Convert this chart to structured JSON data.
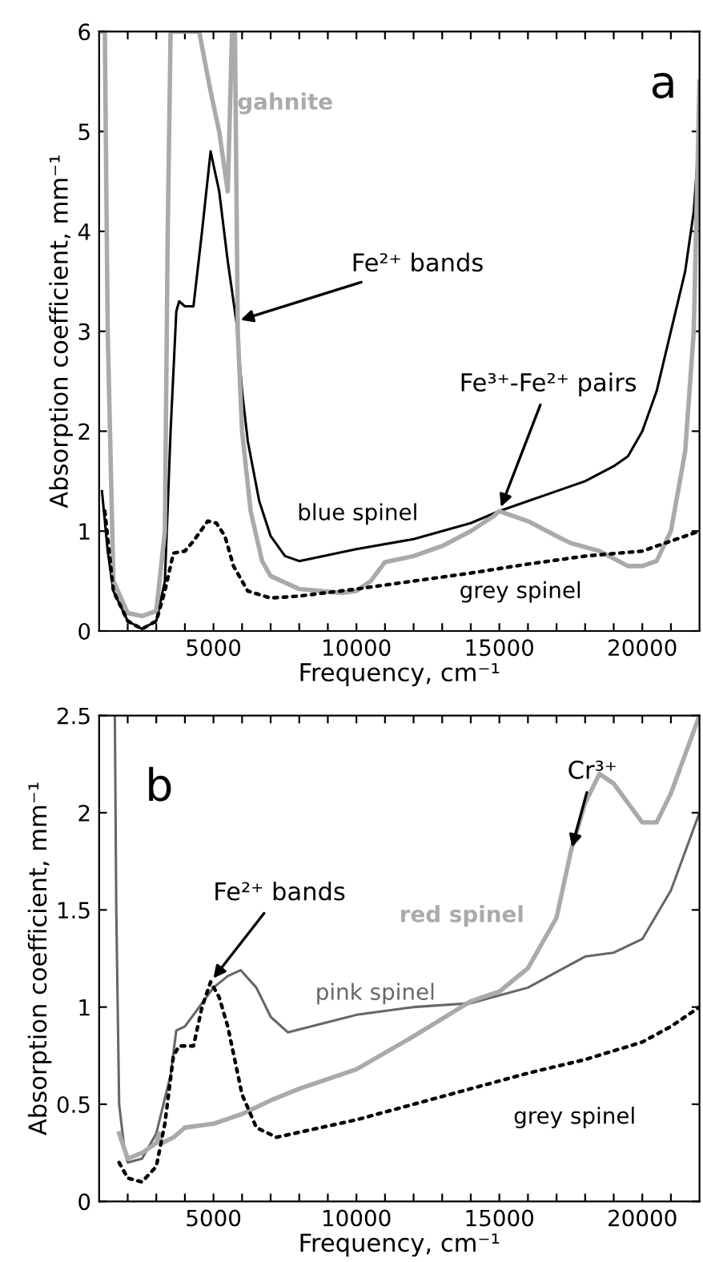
{
  "chart_data": [
    {
      "type": "line",
      "xlabel": "Frequency, cm⁻¹",
      "ylabel": "Absorption coefficient, mm⁻¹",
      "xlim": [
        1000,
        22000
      ],
      "ylim": [
        0,
        6
      ],
      "xticks": [
        {
          "value": 2000,
          "label": null
        },
        {
          "value": 3000,
          "label": null
        },
        {
          "value": 4000,
          "label": null
        },
        5000,
        {
          "value": 6000,
          "label": null
        },
        {
          "value": 7000,
          "label": null
        },
        {
          "value": 8000,
          "label": null
        },
        {
          "value": 9000,
          "label": null
        },
        10000,
        {
          "value": 11000,
          "label": null
        },
        {
          "value": 12000,
          "label": null
        },
        {
          "value": 13000,
          "label": null
        },
        {
          "value": 14000,
          "label": null
        },
        15000,
        {
          "value": 16000,
          "label": null
        },
        {
          "value": 17000,
          "label": null
        },
        {
          "value": 18000,
          "label": null
        },
        {
          "value": 19000,
          "label": null
        },
        20000,
        {
          "value": 21000,
          "label": null
        }
      ],
      "yticks": [
        0,
        1,
        2,
        3,
        4,
        5,
        6
      ],
      "grid": false,
      "legend": false,
      "series": [
        {
          "name": "blue spinel",
          "color": "#000000",
          "line_style": "solid",
          "x": [
            1100,
            1300,
            1500,
            2000,
            2500,
            3000,
            3300,
            3500,
            3700,
            3800,
            4000,
            4300,
            4600,
            4900,
            5200,
            5500,
            5800,
            6000,
            6200,
            6600,
            7000,
            7500,
            8000,
            10000,
            12000,
            14000,
            15000,
            16000,
            17000,
            18000,
            19000,
            19500,
            20000,
            20500,
            21000,
            21500,
            21800,
            22000
          ],
          "values": [
            1.4,
            0.8,
            0.4,
            0.1,
            0.02,
            0.1,
            0.5,
            2.0,
            3.2,
            3.3,
            3.25,
            3.25,
            4.0,
            4.8,
            4.4,
            3.7,
            3.1,
            2.4,
            1.9,
            1.3,
            0.95,
            0.75,
            0.7,
            0.82,
            0.92,
            1.08,
            1.2,
            1.3,
            1.4,
            1.5,
            1.65,
            1.75,
            2.0,
            2.4,
            3.0,
            3.6,
            4.2,
            5.0
          ]
        },
        {
          "name": "gahnite",
          "color": "#aaaaaa",
          "line_style": "solid",
          "x": [
            1000,
            1200,
            1300,
            1500,
            2000,
            2500,
            3000,
            3300,
            3400,
            3500,
            4500,
            4900,
            5200,
            5500,
            5650,
            5750,
            5850,
            6000,
            6300,
            6700,
            7000,
            8000,
            9500,
            10000,
            10500,
            11000,
            12000,
            13000,
            14000,
            14800,
            15000,
            16000,
            17000,
            17500,
            18500,
            19500,
            20000,
            20500,
            21000,
            21500,
            21800,
            22000
          ],
          "values": [
            6,
            6,
            3,
            0.5,
            0.18,
            0.15,
            0.2,
            1.0,
            4.0,
            6,
            6,
            5.4,
            5.0,
            4.4,
            6,
            6,
            3.0,
            2.0,
            1.2,
            0.7,
            0.55,
            0.42,
            0.38,
            0.4,
            0.5,
            0.69,
            0.75,
            0.85,
            1.0,
            1.15,
            1.2,
            1.1,
            0.95,
            0.88,
            0.8,
            0.65,
            0.65,
            0.7,
            1.0,
            1.8,
            3.0,
            5.5
          ]
        },
        {
          "name": "grey spinel",
          "color": "#000000",
          "line_style": "dotted",
          "x": [
            1200,
            1500,
            2000,
            2500,
            3000,
            3300,
            3600,
            4000,
            4300,
            4800,
            5100,
            5400,
            5700,
            6200,
            7000,
            8000,
            10000,
            12000,
            14000,
            16000,
            18000,
            20000,
            21000,
            22000
          ],
          "values": [
            1.2,
            0.4,
            0.1,
            0.02,
            0.1,
            0.4,
            0.78,
            0.8,
            0.9,
            1.1,
            1.08,
            0.95,
            0.65,
            0.4,
            0.33,
            0.35,
            0.42,
            0.5,
            0.58,
            0.67,
            0.75,
            0.8,
            0.9,
            1.0
          ]
        }
      ],
      "annotations": [
        "a",
        {
          "text": "Fe²⁺ bands",
          "x": 5800,
          "y": 3.1
        },
        {
          "text": "Fe³⁺-Fe²⁺ pairs",
          "x": 15000,
          "y": 1.2
        }
      ]
    },
    {
      "type": "line",
      "xlabel": "Frequency, cm⁻¹",
      "ylabel": "Absorption coefficient, mm⁻¹",
      "xlim": [
        1000,
        22000
      ],
      "ylim": [
        0,
        2.5
      ],
      "xticks": [
        {
          "value": 2000,
          "label": null
        },
        {
          "value": 3000,
          "label": null
        },
        {
          "value": 4000,
          "label": null
        },
        5000,
        {
          "value": 6000,
          "label": null
        },
        {
          "value": 7000,
          "label": null
        },
        {
          "value": 8000,
          "label": null
        },
        {
          "value": 9000,
          "label": null
        },
        10000,
        {
          "value": 11000,
          "label": null
        },
        {
          "value": 12000,
          "label": null
        },
        {
          "value": 13000,
          "label": null
        },
        {
          "value": 14000,
          "label": null
        },
        15000,
        {
          "value": 16000,
          "label": null
        },
        {
          "value": 17000,
          "label": null
        },
        {
          "value": 18000,
          "label": null
        },
        {
          "value": 19000,
          "label": null
        },
        20000,
        {
          "value": 21000,
          "label": null
        }
      ],
      "yticks": [
        0,
        0.5,
        1,
        1.5,
        2,
        2.5
      ],
      "grid": false,
      "legend": false,
      "series": [
        {
          "name": "pink spinel",
          "color": "#666666",
          "line_style": "solid",
          "x": [
            1550,
            1600,
            1700,
            1900,
            2000,
            2500,
            3000,
            3500,
            3700,
            4000,
            4500,
            5000,
            5500,
            5950,
            6500,
            7000,
            7600,
            10000,
            12000,
            14000,
            16000,
            17000,
            18000,
            19000,
            20000,
            21000,
            21500,
            22000
          ],
          "values": [
            2.5,
            1.5,
            0.5,
            0.25,
            0.2,
            0.22,
            0.35,
            0.65,
            0.88,
            0.9,
            1.0,
            1.1,
            1.16,
            1.19,
            1.1,
            0.95,
            0.87,
            0.96,
            1.0,
            1.02,
            1.1,
            1.18,
            1.26,
            1.28,
            1.35,
            1.6,
            1.8,
            2.0
          ]
        },
        {
          "name": "red spinel",
          "color": "#aaaaaa",
          "line_style": "solid",
          "x": [
            1700,
            2000,
            2500,
            3000,
            3100,
            3200,
            3600,
            4000,
            5000,
            6000,
            7000,
            8000,
            10000,
            12000,
            14000,
            15000,
            16000,
            17000,
            17500,
            18000,
            18500,
            19000,
            19500,
            20000,
            20500,
            21000,
            21500,
            22000
          ],
          "values": [
            0.35,
            0.22,
            0.25,
            0.3,
            0.35,
            0.3,
            0.33,
            0.38,
            0.4,
            0.45,
            0.52,
            0.58,
            0.68,
            0.85,
            1.03,
            1.08,
            1.2,
            1.46,
            1.8,
            2.05,
            2.2,
            2.15,
            2.05,
            1.95,
            1.95,
            2.1,
            2.3,
            2.5
          ]
        },
        {
          "name": "grey spinel",
          "color": "#000000",
          "line_style": "dotted",
          "x": [
            1700,
            2000,
            2500,
            3000,
            3300,
            3600,
            3800,
            4300,
            4600,
            4900,
            5200,
            5500,
            6000,
            6500,
            7200,
            10000,
            12000,
            14000,
            16000,
            18000,
            20000,
            21000,
            22000
          ],
          "values": [
            0.2,
            0.12,
            0.1,
            0.18,
            0.4,
            0.75,
            0.8,
            0.8,
            1.0,
            1.13,
            1.05,
            0.9,
            0.55,
            0.38,
            0.33,
            0.42,
            0.5,
            0.58,
            0.66,
            0.73,
            0.82,
            0.9,
            1.0
          ]
        }
      ],
      "annotations": [
        "b",
        {
          "text": "Cr³⁺",
          "x": 17500,
          "y": 1.8
        },
        {
          "text": "Fe²⁺ bands",
          "x": 4900,
          "y": 1.13
        }
      ]
    }
  ]
}
